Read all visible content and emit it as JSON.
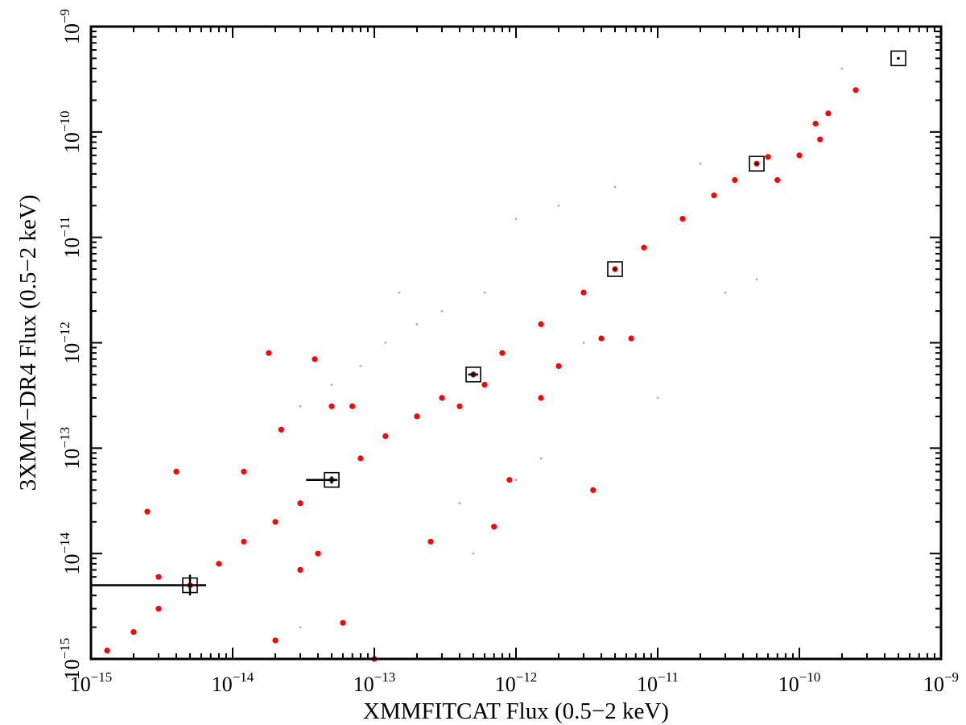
{
  "chart_data": {
    "type": "scatter",
    "title": "",
    "xlabel": "XMMFITCAT Flux (0.5−2 keV)",
    "ylabel": "3XMM−DR4 Flux (0.5−2 keV)",
    "xscale": "log",
    "yscale": "log",
    "xlim": [
      1e-15,
      1e-09
    ],
    "ylim": [
      1e-15,
      1e-09
    ],
    "x_ticks": [
      {
        "value": 1e-15,
        "base": "10",
        "exp": "−15"
      },
      {
        "value": 1e-14,
        "base": "10",
        "exp": "−14"
      },
      {
        "value": 1e-13,
        "base": "10",
        "exp": "−13"
      },
      {
        "value": 1e-12,
        "base": "10",
        "exp": "−12"
      },
      {
        "value": 1e-11,
        "base": "10",
        "exp": "−11"
      },
      {
        "value": 1e-10,
        "base": "10",
        "exp": "−10"
      },
      {
        "value": 1e-09,
        "base": "10",
        "exp": "−9"
      }
    ],
    "y_ticks": [
      {
        "value": 1e-15,
        "base": "10",
        "exp": "−15"
      },
      {
        "value": 1e-14,
        "base": "10",
        "exp": "−14"
      },
      {
        "value": 1e-13,
        "base": "10",
        "exp": "−13"
      },
      {
        "value": 1e-12,
        "base": "10",
        "exp": "−12"
      },
      {
        "value": 1e-11,
        "base": "10",
        "exp": "−11"
      },
      {
        "value": 1e-10,
        "base": "10",
        "exp": "−10"
      },
      {
        "value": 1e-09,
        "base": "10",
        "exp": "−9"
      }
    ],
    "grid": false,
    "legend": "none",
    "series": [
      {
        "role": "background",
        "color": "#b0b0b0",
        "marker": "small dot",
        "points": [
          [
            3e-14,
            2.5e-13
          ],
          [
            5e-14,
            4e-13
          ],
          [
            8e-14,
            6e-13
          ],
          [
            1.2e-13,
            1e-12
          ],
          [
            2e-13,
            1.5e-12
          ],
          [
            3e-13,
            2e-12
          ],
          [
            1.5e-13,
            3e-12
          ],
          [
            6e-13,
            3e-12
          ],
          [
            1e-12,
            1.5e-11
          ],
          [
            2e-12,
            2e-11
          ],
          [
            5e-12,
            3e-11
          ],
          [
            2e-11,
            5e-11
          ],
          [
            2e-10,
            4e-10
          ],
          [
            4e-13,
            3e-14
          ],
          [
            1e-12,
            5e-14
          ],
          [
            1.5e-12,
            8e-14
          ],
          [
            3e-12,
            1e-12
          ],
          [
            1e-11,
            3e-13
          ],
          [
            3e-11,
            3e-12
          ],
          [
            5e-11,
            4e-12
          ],
          [
            3e-14,
            2e-15
          ],
          [
            5e-13,
            1e-14
          ]
        ]
      },
      {
        "role": "matched",
        "color": "#ff0000",
        "marker": "filled circle",
        "points": [
          [
            1.3e-15,
            1.2e-15
          ],
          [
            2e-15,
            1.8e-15
          ],
          [
            3e-15,
            3e-15
          ],
          [
            5e-15,
            5e-15
          ],
          [
            8e-15,
            8e-15
          ],
          [
            1.2e-14,
            1.3e-14
          ],
          [
            2e-14,
            2e-14
          ],
          [
            3e-14,
            3e-14
          ],
          [
            5e-14,
            5e-14
          ],
          [
            8e-14,
            8e-14
          ],
          [
            1.2e-13,
            1.3e-13
          ],
          [
            2e-13,
            2e-13
          ],
          [
            3e-13,
            3e-13
          ],
          [
            5e-13,
            5e-13
          ],
          [
            8e-13,
            8e-13
          ],
          [
            1.5e-12,
            1.5e-12
          ],
          [
            3e-12,
            3e-12
          ],
          [
            5e-12,
            5e-12
          ],
          [
            8e-12,
            8e-12
          ],
          [
            1.5e-11,
            1.5e-11
          ],
          [
            2.5e-11,
            2.5e-11
          ],
          [
            3.5e-11,
            3.5e-11
          ],
          [
            5e-11,
            5e-11
          ],
          [
            6e-11,
            5.8e-11
          ],
          [
            7e-11,
            3.5e-11
          ],
          [
            1e-10,
            6e-11
          ],
          [
            1.3e-10,
            1.2e-10
          ],
          [
            1.4e-10,
            8.5e-11
          ],
          [
            1.6e-10,
            1.5e-10
          ],
          [
            2.5e-10,
            2.5e-10
          ],
          [
            4e-13,
            2.5e-13
          ],
          [
            6e-13,
            4e-13
          ],
          [
            2e-12,
            6e-13
          ],
          [
            1.5e-12,
            3e-13
          ],
          [
            4e-12,
            1.1e-12
          ],
          [
            2.5e-13,
            1.3e-14
          ],
          [
            7e-13,
            1.8e-14
          ],
          [
            9e-13,
            5e-14
          ],
          [
            1e-13,
            1e-15
          ],
          [
            6e-14,
            2.2e-15
          ],
          [
            3e-14,
            7e-15
          ],
          [
            2e-14,
            1.5e-15
          ],
          [
            4e-14,
            1e-14
          ],
          [
            2.5e-15,
            2.5e-14
          ],
          [
            3e-15,
            6e-15
          ],
          [
            1.8e-14,
            8e-13
          ],
          [
            3.8e-14,
            7e-13
          ],
          [
            7e-14,
            2.5e-13
          ],
          [
            1.2e-14,
            6e-14
          ],
          [
            2.2e-14,
            1.5e-13
          ],
          [
            5e-14,
            2.5e-13
          ],
          [
            4e-15,
            6e-14
          ],
          [
            3.5e-12,
            4e-14
          ],
          [
            6.5e-12,
            1.1e-12
          ]
        ]
      }
    ],
    "reference_points": {
      "marker": "open square with central dot",
      "color": "#000000",
      "points": [
        {
          "x": 5e-15,
          "y": 5e-15,
          "x_err": [
            1e-15,
            6.5e-15
          ],
          "y_err": [
            4e-15,
            6.3e-15
          ]
        },
        {
          "x": 5e-14,
          "y": 5e-14,
          "x_err": [
            3.3e-14,
            5.5e-14
          ],
          "y_err": [
            4.6e-14,
            5.4e-14
          ]
        },
        {
          "x": 5e-13,
          "y": 5e-13,
          "x_err": [
            4.6e-13,
            5.4e-13
          ],
          "y_err": [
            4.7e-13,
            5.3e-13
          ]
        },
        {
          "x": 5e-12,
          "y": 5e-12
        },
        {
          "x": 5e-11,
          "y": 5e-11
        },
        {
          "x": 5e-10,
          "y": 5e-10
        }
      ]
    }
  }
}
